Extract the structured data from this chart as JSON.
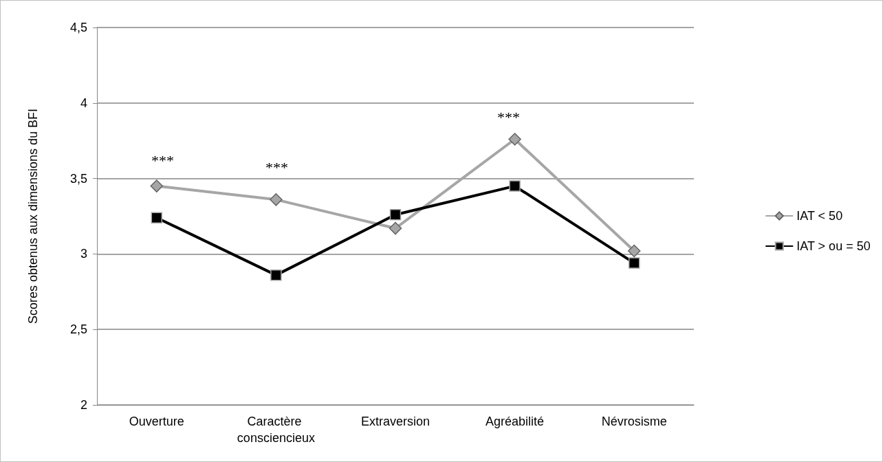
{
  "chart_data": {
    "type": "line",
    "categories": [
      "Ouverture",
      "Caractère consciencieux",
      "Extraversion",
      "Agréabilité",
      "Névrosisme"
    ],
    "ylabel": "Scores obtenus aux dimensions du BFI",
    "ylim": [
      2,
      4.5
    ],
    "yticks": [
      2,
      {
        "value": 2.5,
        "label": "2,5"
      },
      3,
      {
        "value": 3.5,
        "label": "3,5"
      },
      4,
      {
        "value": 4.5,
        "label": "4,5"
      }
    ],
    "grid": "y",
    "legend": "right",
    "series": [
      {
        "name": "IAT < 50",
        "color": "#a6a6a6",
        "marker": "diamond",
        "values": [
          3.45,
          3.36,
          3.17,
          3.76,
          3.02
        ]
      },
      {
        "name": "IAT > ou = 50",
        "color": "#000000",
        "marker": "square",
        "values": [
          3.24,
          2.86,
          3.26,
          3.45,
          2.94
        ]
      }
    ],
    "annotations": [
      "***",
      "***",
      "***"
    ]
  }
}
